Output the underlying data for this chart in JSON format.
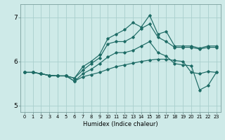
{
  "xlabel": "Humidex (Indice chaleur)",
  "ylabel": "",
  "background_color": "#ceeae8",
  "grid_color": "#aacfcd",
  "line_color": "#1d6b65",
  "xlim": [
    -0.5,
    23.5
  ],
  "ylim": [
    4.85,
    7.3
  ],
  "xticks": [
    0,
    1,
    2,
    3,
    4,
    5,
    6,
    7,
    8,
    9,
    10,
    11,
    12,
    13,
    14,
    15,
    16,
    17,
    18,
    19,
    20,
    21,
    22,
    23
  ],
  "yticks": [
    5,
    6,
    7
  ],
  "series": [
    [
      5.75,
      5.75,
      5.72,
      5.68,
      5.67,
      5.67,
      5.55,
      5.65,
      5.7,
      5.75,
      5.82,
      5.88,
      5.92,
      5.96,
      6.0,
      6.03,
      6.05,
      6.05,
      6.02,
      6.0,
      5.75,
      5.72,
      5.77,
      5.75
    ],
    [
      5.75,
      5.75,
      5.72,
      5.68,
      5.67,
      5.67,
      5.55,
      5.72,
      5.82,
      5.95,
      6.1,
      6.2,
      6.2,
      6.25,
      6.35,
      6.45,
      6.2,
      6.12,
      5.95,
      5.92,
      5.9,
      5.35,
      5.45,
      5.75
    ],
    [
      5.75,
      5.75,
      5.72,
      5.68,
      5.67,
      5.67,
      5.62,
      5.8,
      5.95,
      6.08,
      6.4,
      6.45,
      6.45,
      6.55,
      6.75,
      6.85,
      6.55,
      6.45,
      6.32,
      6.32,
      6.32,
      6.28,
      6.32,
      6.32
    ],
    [
      5.75,
      5.75,
      5.72,
      5.68,
      5.67,
      5.67,
      5.62,
      5.88,
      6.0,
      6.15,
      6.52,
      6.62,
      6.72,
      6.88,
      6.78,
      7.05,
      6.62,
      6.68,
      6.35,
      6.35,
      6.35,
      6.3,
      6.35,
      6.35
    ]
  ]
}
